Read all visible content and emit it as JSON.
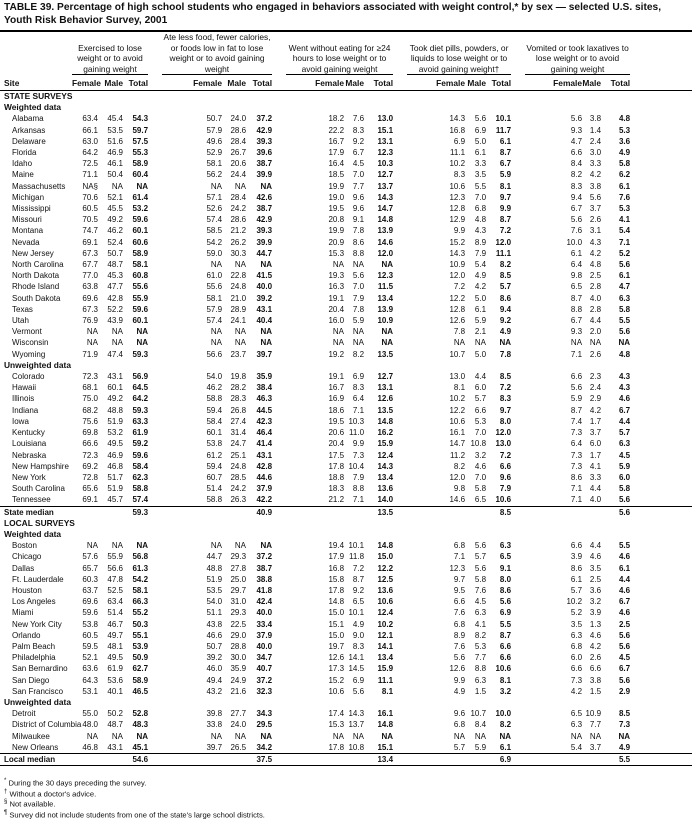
{
  "title": "TABLE 39. Percentage of high school students who engaged in behaviors associated with weight control,* by sex — selected U.S. sites, Youth Risk Behavior Survey, 2001",
  "groups": [
    "Exercised to lose weight or to avoid gaining weight",
    "Ate less food, fewer calories, or foods low in fat to lose weight or to avoid gaining weight",
    "Went without eating for ≥24 hours to lose weight or to avoid gaining weight",
    "Took diet pills, powders, or liquids to lose weight or to avoid gaining weight†",
    "Vomited or took laxatives to lose weight or to avoid gaining weight"
  ],
  "site_header": "Site",
  "sub_headers": [
    "Female",
    "Male",
    "Total"
  ],
  "sections": [
    {
      "heading": "STATE SURVEYS",
      "sub": "Weighted data",
      "rows": [
        [
          "Alabama",
          "63.4",
          "45.4",
          "54.3",
          "50.7",
          "24.0",
          "37.2",
          "18.2",
          "7.6",
          "13.0",
          "14.3",
          "5.6",
          "10.1",
          "5.6",
          "3.8",
          "4.8"
        ],
        [
          "Arkansas",
          "66.1",
          "53.5",
          "59.7",
          "57.9",
          "28.6",
          "42.9",
          "22.2",
          "8.3",
          "15.1",
          "16.8",
          "6.9",
          "11.7",
          "9.3",
          "1.4",
          "5.3"
        ],
        [
          "Delaware",
          "63.0",
          "51.6",
          "57.5",
          "49.6",
          "28.4",
          "39.3",
          "16.7",
          "9.2",
          "13.1",
          "6.9",
          "5.0",
          "6.1",
          "4.7",
          "2.4",
          "3.6"
        ],
        [
          "Florida",
          "64.2",
          "46.9",
          "55.3",
          "52.9",
          "26.7",
          "39.6",
          "17.9",
          "6.7",
          "12.3",
          "11.1",
          "6.1",
          "8.7",
          "6.6",
          "3.0",
          "4.9"
        ],
        [
          "Idaho",
          "72.5",
          "46.1",
          "58.9",
          "58.1",
          "20.6",
          "38.7",
          "16.4",
          "4.5",
          "10.3",
          "10.2",
          "3.3",
          "6.7",
          "8.4",
          "3.3",
          "5.8"
        ],
        [
          "Maine",
          "71.1",
          "50.4",
          "60.4",
          "56.2",
          "24.4",
          "39.9",
          "18.5",
          "7.0",
          "12.7",
          "8.3",
          "3.5",
          "5.9",
          "8.2",
          "4.2",
          "6.2"
        ],
        [
          "Massachusetts",
          "NA§",
          "NA",
          "NA",
          "NA",
          "NA",
          "NA",
          "19.9",
          "7.7",
          "13.7",
          "10.6",
          "5.5",
          "8.1",
          "8.3",
          "3.8",
          "6.1"
        ],
        [
          "Michigan",
          "70.6",
          "52.1",
          "61.4",
          "57.1",
          "28.4",
          "42.6",
          "19.0",
          "9.6",
          "14.3",
          "12.3",
          "7.0",
          "9.7",
          "9.4",
          "5.6",
          "7.6"
        ],
        [
          "Mississippi",
          "60.5",
          "45.5",
          "53.2",
          "52.6",
          "24.2",
          "38.7",
          "19.5",
          "9.6",
          "14.7",
          "12.8",
          "6.8",
          "9.9",
          "6.7",
          "3.7",
          "5.3"
        ],
        [
          "Missouri",
          "70.5",
          "49.2",
          "59.6",
          "57.4",
          "28.6",
          "42.9",
          "20.8",
          "9.1",
          "14.8",
          "12.9",
          "4.8",
          "8.7",
          "5.6",
          "2.6",
          "4.1"
        ],
        [
          "Montana",
          "74.7",
          "46.2",
          "60.1",
          "58.5",
          "21.2",
          "39.3",
          "19.9",
          "7.8",
          "13.9",
          "9.9",
          "4.3",
          "7.2",
          "7.6",
          "3.1",
          "5.4"
        ],
        [
          "Nevada",
          "69.1",
          "52.4",
          "60.6",
          "54.2",
          "26.2",
          "39.9",
          "20.9",
          "8.6",
          "14.6",
          "15.2",
          "8.9",
          "12.0",
          "10.0",
          "4.3",
          "7.1"
        ],
        [
          "New Jersey",
          "67.3",
          "50.7",
          "58.9",
          "59.0",
          "30.3",
          "44.7",
          "15.3",
          "8.8",
          "12.0",
          "14.3",
          "7.9",
          "11.1",
          "6.1",
          "4.2",
          "5.2"
        ],
        [
          "North Carolina",
          "67.7",
          "48.7",
          "58.1",
          "NA",
          "NA",
          "NA",
          "NA",
          "NA",
          "NA",
          "10.9",
          "5.4",
          "8.2",
          "6.4",
          "4.8",
          "5.6"
        ],
        [
          "North Dakota",
          "77.0",
          "45.3",
          "60.8",
          "61.0",
          "22.8",
          "41.5",
          "19.3",
          "5.6",
          "12.3",
          "12.0",
          "4.9",
          "8.5",
          "9.8",
          "2.5",
          "6.1"
        ],
        [
          "Rhode Island",
          "63.8",
          "47.7",
          "55.6",
          "55.6",
          "24.8",
          "40.0",
          "16.3",
          "7.0",
          "11.5",
          "7.2",
          "4.2",
          "5.7",
          "6.5",
          "2.8",
          "4.7"
        ],
        [
          "South Dakota",
          "69.6",
          "42.8",
          "55.9",
          "58.1",
          "21.0",
          "39.2",
          "19.1",
          "7.9",
          "13.4",
          "12.2",
          "5.0",
          "8.6",
          "8.7",
          "4.0",
          "6.3"
        ],
        [
          "Texas",
          "67.3",
          "52.2",
          "59.6",
          "57.9",
          "28.9",
          "43.1",
          "20.4",
          "7.8",
          "13.9",
          "12.8",
          "6.1",
          "9.4",
          "8.8",
          "2.8",
          "5.8"
        ],
        [
          "Utah",
          "76.9",
          "43.9",
          "60.1",
          "57.4",
          "24.1",
          "40.4",
          "16.0",
          "5.9",
          "10.9",
          "12.6",
          "5.9",
          "9.2",
          "6.7",
          "4.4",
          "5.5"
        ],
        [
          "Vermont",
          "NA",
          "NA",
          "NA",
          "NA",
          "NA",
          "NA",
          "NA",
          "NA",
          "NA",
          "7.8",
          "2.1",
          "4.9",
          "9.3",
          "2.0",
          "5.6"
        ],
        [
          "Wisconsin",
          "NA",
          "NA",
          "NA",
          "NA",
          "NA",
          "NA",
          "NA",
          "NA",
          "NA",
          "NA",
          "NA",
          "NA",
          "NA",
          "NA",
          "NA"
        ],
        [
          "Wyoming",
          "71.9",
          "47.4",
          "59.3",
          "56.6",
          "23.7",
          "39.7",
          "19.2",
          "8.2",
          "13.5",
          "10.7",
          "5.0",
          "7.8",
          "7.1",
          "2.6",
          "4.8"
        ]
      ]
    },
    {
      "heading": "",
      "sub": "Unweighted data",
      "rows": [
        [
          "Colorado",
          "72.3",
          "43.1",
          "56.9",
          "54.0",
          "19.8",
          "35.9",
          "19.1",
          "6.9",
          "12.7",
          "13.0",
          "4.4",
          "8.5",
          "6.6",
          "2.3",
          "4.3"
        ],
        [
          "Hawaii",
          "68.1",
          "60.1",
          "64.5",
          "46.2",
          "28.2",
          "38.4",
          "16.7",
          "8.3",
          "13.1",
          "8.1",
          "6.0",
          "7.2",
          "5.6",
          "2.4",
          "4.3"
        ],
        [
          "Illinois",
          "75.0",
          "49.2",
          "64.2",
          "58.8",
          "28.3",
          "46.3",
          "16.9",
          "6.4",
          "12.6",
          "10.2",
          "5.7",
          "8.3",
          "5.9",
          "2.9",
          "4.6"
        ],
        [
          "Indiana",
          "68.2",
          "48.8",
          "59.3",
          "59.4",
          "26.8",
          "44.5",
          "18.6",
          "7.1",
          "13.5",
          "12.2",
          "6.6",
          "9.7",
          "8.7",
          "4.2",
          "6.7"
        ],
        [
          "Iowa",
          "75.6",
          "51.9",
          "63.3",
          "58.4",
          "27.4",
          "42.3",
          "19.5",
          "10.3",
          "14.8",
          "10.6",
          "5.3",
          "8.0",
          "7.4",
          "1.7",
          "4.4"
        ],
        [
          "Kentucky",
          "69.8",
          "53.2",
          "61.9",
          "60.1",
          "31.4",
          "46.4",
          "20.6",
          "11.0",
          "16.2",
          "16.1",
          "7.0",
          "12.0",
          "7.3",
          "3.7",
          "5.7"
        ],
        [
          "Louisiana",
          "66.6",
          "49.5",
          "59.2",
          "53.8",
          "24.7",
          "41.4",
          "20.4",
          "9.9",
          "15.9",
          "14.7",
          "10.8",
          "13.0",
          "6.4",
          "6.0",
          "6.3"
        ],
        [
          "Nebraska",
          "72.3",
          "46.9",
          "59.6",
          "61.2",
          "25.1",
          "43.1",
          "17.5",
          "7.3",
          "12.4",
          "11.2",
          "3.2",
          "7.2",
          "7.3",
          "1.7",
          "4.5"
        ],
        [
          "New Hampshire",
          "69.2",
          "46.8",
          "58.4",
          "59.4",
          "24.8",
          "42.8",
          "17.8",
          "10.4",
          "14.3",
          "8.2",
          "4.6",
          "6.6",
          "7.3",
          "4.1",
          "5.9"
        ],
        [
          "New York",
          "72.8",
          "51.7",
          "62.3",
          "60.7",
          "28.5",
          "44.6",
          "18.8",
          "7.9",
          "13.4",
          "12.0",
          "7.0",
          "9.6",
          "8.6",
          "3.3",
          "6.0"
        ],
        [
          "South Carolina",
          "65.6",
          "51.9",
          "58.8",
          "51.4",
          "24.2",
          "37.9",
          "18.3",
          "8.8",
          "13.6",
          "9.8",
          "5.8",
          "7.9",
          "7.1",
          "4.4",
          "5.8"
        ],
        [
          "Tennessee",
          "69.1",
          "45.7",
          "57.4",
          "58.8",
          "26.3",
          "42.2",
          "21.2",
          "7.1",
          "14.0",
          "14.6",
          "6.5",
          "10.6",
          "7.1",
          "4.0",
          "5.6"
        ]
      ],
      "median": {
        "label": "State median",
        "values": [
          "59.3",
          "40.9",
          "13.5",
          "8.5",
          "5.6"
        ]
      }
    },
    {
      "heading": "LOCAL SURVEYS",
      "sub": "Weighted data",
      "rows": [
        [
          "Boston",
          "NA",
          "NA",
          "NA",
          "NA",
          "NA",
          "NA",
          "19.4",
          "10.1",
          "14.8",
          "6.8",
          "5.6",
          "6.3",
          "6.6",
          "4.4",
          "5.5"
        ],
        [
          "Chicago",
          "57.6",
          "55.9",
          "56.8",
          "44.7",
          "29.3",
          "37.2",
          "17.9",
          "11.8",
          "15.0",
          "7.1",
          "5.7",
          "6.5",
          "3.9",
          "4.6",
          "4.6"
        ],
        [
          "Dallas",
          "65.7",
          "56.6",
          "61.3",
          "48.8",
          "27.8",
          "38.7",
          "16.8",
          "7.2",
          "12.2",
          "12.3",
          "5.6",
          "9.1",
          "8.6",
          "3.5",
          "6.1"
        ],
        [
          "Ft. Lauderdale",
          "60.3",
          "47.8",
          "54.2",
          "51.9",
          "25.0",
          "38.8",
          "15.8",
          "8.7",
          "12.5",
          "9.7",
          "5.8",
          "8.0",
          "6.1",
          "2.5",
          "4.4"
        ],
        [
          "Houston",
          "63.7",
          "52.5",
          "58.1",
          "53.5",
          "29.7",
          "41.8",
          "17.8",
          "9.2",
          "13.6",
          "9.5",
          "7.6",
          "8.6",
          "5.7",
          "3.6",
          "4.6"
        ],
        [
          "Los Angeles",
          "69.6",
          "63.4",
          "66.3",
          "54.0",
          "31.0",
          "42.4",
          "14.8",
          "6.5",
          "10.6",
          "6.6",
          "4.5",
          "5.6",
          "10.2",
          "3.2",
          "6.7"
        ],
        [
          "Miami",
          "59.6",
          "51.4",
          "55.2",
          "51.1",
          "29.3",
          "40.0",
          "15.0",
          "10.1",
          "12.4",
          "7.6",
          "6.3",
          "6.9",
          "5.2",
          "3.9",
          "4.6"
        ],
        [
          "New York City",
          "53.8",
          "46.7",
          "50.3",
          "43.8",
          "22.5",
          "33.4",
          "15.1",
          "4.9",
          "10.2",
          "6.8",
          "4.1",
          "5.5",
          "3.5",
          "1.3",
          "2.5"
        ],
        [
          "Orlando",
          "60.5",
          "49.7",
          "55.1",
          "46.6",
          "29.0",
          "37.9",
          "15.0",
          "9.0",
          "12.1",
          "8.9",
          "8.2",
          "8.7",
          "6.3",
          "4.6",
          "5.6"
        ],
        [
          "Palm Beach",
          "59.5",
          "48.1",
          "53.9",
          "50.7",
          "28.8",
          "40.0",
          "19.7",
          "8.3",
          "14.1",
          "7.6",
          "5.3",
          "6.6",
          "6.8",
          "4.2",
          "5.6"
        ],
        [
          "Philadelphia",
          "52.1",
          "49.5",
          "50.9",
          "39.2",
          "30.0",
          "34.7",
          "12.6",
          "14.1",
          "13.4",
          "5.6",
          "7.7",
          "6.6",
          "6.0",
          "2.6",
          "4.5"
        ],
        [
          "San Bernardino",
          "63.6",
          "61.9",
          "62.7",
          "46.0",
          "35.9",
          "40.7",
          "17.3",
          "14.5",
          "15.9",
          "12.6",
          "8.8",
          "10.6",
          "6.6",
          "6.6",
          "6.7"
        ],
        [
          "San Diego",
          "64.3",
          "53.6",
          "58.9",
          "49.4",
          "24.9",
          "37.2",
          "15.2",
          "6.9",
          "11.1",
          "9.9",
          "6.3",
          "8.1",
          "7.3",
          "3.8",
          "5.6"
        ],
        [
          "San Francisco",
          "53.1",
          "40.1",
          "46.5",
          "43.2",
          "21.6",
          "32.3",
          "10.6",
          "5.6",
          "8.1",
          "4.9",
          "1.5",
          "3.2",
          "4.2",
          "1.5",
          "2.9"
        ]
      ]
    },
    {
      "heading": "",
      "sub": "Unweighted data",
      "rows": [
        [
          "Detroit",
          "55.0",
          "50.2",
          "52.8",
          "39.8",
          "27.7",
          "34.3",
          "17.4",
          "14.3",
          "16.1",
          "9.6",
          "10.7",
          "10.0",
          "6.5",
          "10.9",
          "8.5"
        ],
        [
          "District of Columbia",
          "48.0",
          "48.7",
          "48.3",
          "33.8",
          "24.0",
          "29.5",
          "15.3",
          "13.7",
          "14.8",
          "6.8",
          "8.4",
          "8.2",
          "6.3",
          "7.7",
          "7.3"
        ],
        [
          "Milwaukee",
          "NA",
          "NA",
          "NA",
          "NA",
          "NA",
          "NA",
          "NA",
          "NA",
          "NA",
          "NA",
          "NA",
          "NA",
          "NA",
          "NA",
          "NA"
        ],
        [
          "New Orleans",
          "46.8",
          "43.1",
          "45.1",
          "39.7",
          "26.5",
          "34.2",
          "17.8",
          "10.8",
          "15.1",
          "5.7",
          "5.9",
          "6.1",
          "5.4",
          "3.7",
          "4.9"
        ]
      ],
      "median": {
        "label": "Local median",
        "values": [
          "54.6",
          "37.5",
          "13.4",
          "6.9",
          "5.5"
        ]
      }
    }
  ],
  "footnotes": [
    {
      "mark": "*",
      "text": "During the 30 days preceding the survey."
    },
    {
      "mark": "†",
      "text": "Without a doctor's advice."
    },
    {
      "mark": "§",
      "text": "Not available."
    },
    {
      "mark": "¶",
      "text": "Survey did not include students from one of the state's large school districts."
    }
  ]
}
